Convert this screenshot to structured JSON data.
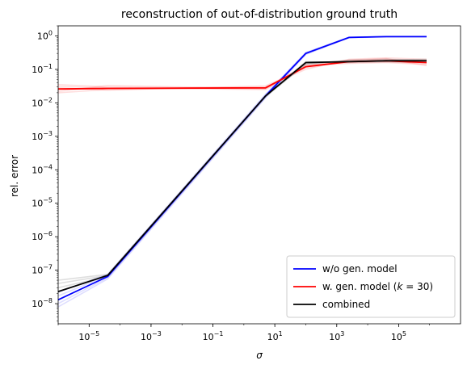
{
  "chart_data": {
    "type": "line",
    "title": "reconstruction of out-of-distribution ground truth",
    "xlabel": "σ",
    "ylabel": "rel. error",
    "xscale": "log",
    "yscale": "log",
    "xlim": [
      1e-06,
      10000000.0
    ],
    "ylim": [
      2.5e-09,
      2
    ],
    "x_ticks": [
      {
        "v": 1e-05,
        "b": "10",
        "e": "−5"
      },
      {
        "v": 0.001,
        "b": "10",
        "e": "−3"
      },
      {
        "v": 0.1,
        "b": "10",
        "e": "−1"
      },
      {
        "v": 10.0,
        "b": "10",
        "e": "1"
      },
      {
        "v": 1000.0,
        "b": "10",
        "e": "3"
      },
      {
        "v": 100000.0,
        "b": "10",
        "e": "5"
      }
    ],
    "y_ticks": [
      {
        "v": 1e-08,
        "b": "10",
        "e": "−8"
      },
      {
        "v": 1e-07,
        "b": "10",
        "e": "−7"
      },
      {
        "v": 1e-06,
        "b": "10",
        "e": "−6"
      },
      {
        "v": 1e-05,
        "b": "10",
        "e": "−5"
      },
      {
        "v": 0.0001,
        "b": "10",
        "e": "−4"
      },
      {
        "v": 0.001,
        "b": "10",
        "e": "−3"
      },
      {
        "v": 0.01,
        "b": "10",
        "e": "−2"
      },
      {
        "v": 0.1,
        "b": "10",
        "e": "−1"
      },
      {
        "v": 1,
        "b": "10",
        "e": "0"
      }
    ],
    "grid": false,
    "legend_position": "bottom-right",
    "series": [
      {
        "name": "w/o gen. model",
        "color": "#0000ff",
        "x": [
          1e-06,
          4e-05,
          5,
          100,
          2500,
          40000.0,
          800000.0
        ],
        "y": [
          1.3e-08,
          6.5e-08,
          0.016,
          0.3,
          0.9,
          0.95,
          0.95
        ],
        "faint": [
          [
            1e-08,
            6e-08,
            0.015,
            0.28,
            0.88,
            0.94,
            0.95
          ],
          [
            1.7e-08,
            7e-08,
            0.017,
            0.32,
            0.92,
            0.96,
            0.96
          ],
          [
            8e-09,
            5.5e-08,
            0.014,
            0.29,
            0.9,
            0.95,
            0.94
          ],
          [
            2.2e-08,
            7.5e-08,
            0.018,
            0.31,
            0.91,
            0.95,
            0.95
          ]
        ]
      },
      {
        "name": "w. gen. model (k = 30)",
        "label_parts": [
          "w. gen. model (",
          "k",
          " = 30)"
        ],
        "color": "#ff0000",
        "x": [
          1e-06,
          4e-05,
          5,
          100,
          2500,
          40000.0,
          800000.0
        ],
        "y": [
          0.026,
          0.027,
          0.028,
          0.12,
          0.17,
          0.18,
          0.16
        ],
        "faint": [
          [
            0.02,
            0.025,
            0.03,
            0.1,
            0.2,
            0.22,
            0.2
          ],
          [
            0.035,
            0.03,
            0.026,
            0.13,
            0.15,
            0.16,
            0.14
          ],
          [
            0.028,
            0.024,
            0.032,
            0.11,
            0.18,
            0.2,
            0.18
          ],
          [
            0.022,
            0.033,
            0.027,
            0.14,
            0.16,
            0.17,
            0.15
          ],
          [
            0.031,
            0.028,
            0.025,
            0.12,
            0.19,
            0.21,
            0.13
          ]
        ]
      },
      {
        "name": "combined",
        "color": "#000000",
        "x": [
          1e-06,
          4e-05,
          5,
          100,
          2500,
          40000.0,
          800000.0
        ],
        "y": [
          2.3e-08,
          7e-08,
          0.016,
          0.16,
          0.17,
          0.18,
          0.18
        ],
        "faint": [
          [
            4e-08,
            7e-08,
            0.016,
            0.14,
            0.19,
            0.2,
            0.19
          ],
          [
            5e-08,
            7.5e-08,
            0.016,
            0.17,
            0.16,
            0.17,
            0.16
          ],
          [
            3e-08,
            6.5e-08,
            0.015,
            0.15,
            0.18,
            0.19,
            0.2
          ]
        ]
      }
    ]
  }
}
